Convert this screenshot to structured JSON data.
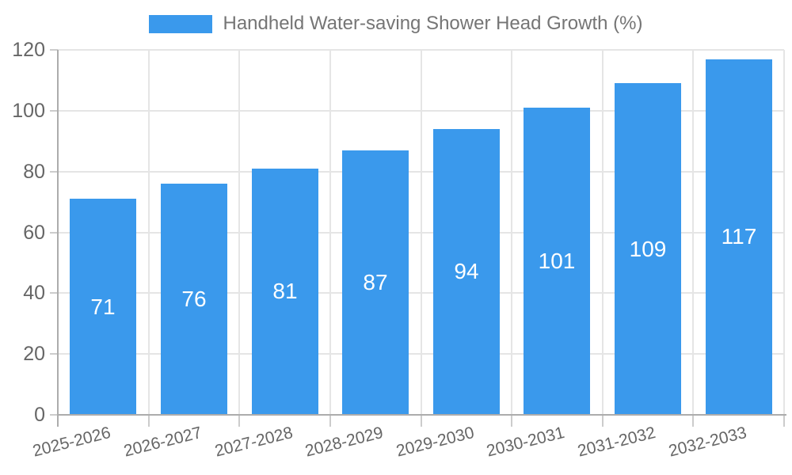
{
  "chart_data": {
    "type": "bar",
    "title": "Handheld Water-saving Shower Head Growth (%)",
    "categories": [
      "2025-2026",
      "2026-2027",
      "2027-2028",
      "2028-2029",
      "2029-2030",
      "2030-2031",
      "2031-2032",
      "2032-2033"
    ],
    "values": [
      71,
      76,
      81,
      87,
      94,
      101,
      109,
      117
    ],
    "xlabel": "",
    "ylabel": "",
    "ylim": [
      0,
      120
    ],
    "yticks": [
      0,
      20,
      40,
      60,
      80,
      100,
      120
    ],
    "grid": true,
    "legend_position": "top-center",
    "value_labels": "inside-center"
  },
  "colors": {
    "bar": "#3a99ec",
    "value_label": "#ffffff",
    "axis_line": "#acacac",
    "gridline": "#e5e5e5",
    "tick": "#cccccc",
    "axis_text": "#666666",
    "title_text": "#757575",
    "background": "#ffffff"
  }
}
